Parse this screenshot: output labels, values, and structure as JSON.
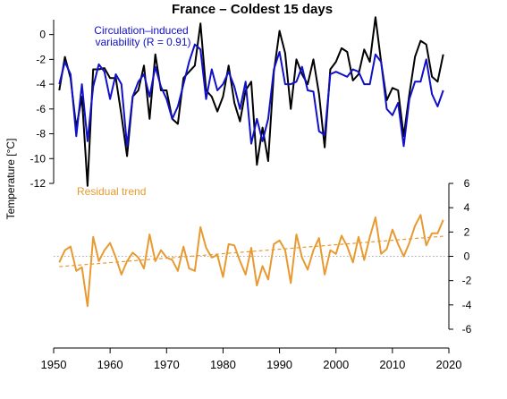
{
  "chart_data": {
    "type": "line",
    "title": "France – Coldest 15 days",
    "ylabel": "Temperature [°C]",
    "x_ticks": [
      1950,
      1960,
      1970,
      1980,
      1990,
      2000,
      2010,
      2020
    ],
    "top_panel": {
      "ylim": [
        -12,
        1.2
      ],
      "y_ticks": [
        0,
        -2,
        -4,
        -6,
        -8,
        -10,
        -12
      ],
      "annotation_line1": "Circulation–induced",
      "annotation_line2": "variability (R = 0.91)",
      "colors": {
        "observed": "#000000",
        "circulation": "#1010c8"
      },
      "x": [
        1951,
        1952,
        1953,
        1954,
        1955,
        1956,
        1957,
        1958,
        1959,
        1960,
        1961,
        1962,
        1963,
        1964,
        1965,
        1966,
        1967,
        1968,
        1969,
        1970,
        1971,
        1972,
        1973,
        1974,
        1975,
        1976,
        1977,
        1978,
        1979,
        1980,
        1981,
        1982,
        1983,
        1984,
        1985,
        1986,
        1987,
        1988,
        1989,
        1990,
        1991,
        1992,
        1993,
        1994,
        1995,
        1996,
        1997,
        1998,
        1999,
        2000,
        2001,
        2002,
        2003,
        2004,
        2005,
        2006,
        2007,
        2008,
        2009,
        2010,
        2011,
        2012,
        2013,
        2014,
        2015,
        2016,
        2017,
        2018,
        2019
      ],
      "series": [
        {
          "values": [
            -4.5,
            -1.8,
            -3.5,
            -7.5,
            -5.0,
            -12.2,
            -2.8,
            -2.8,
            -2.7,
            -3.5,
            -3.5,
            -6.5,
            -9.8,
            -5.0,
            -4.5,
            -2.5,
            -6.8,
            -1.6,
            -4.5,
            -4.5,
            -6.8,
            -7.2,
            -3.5,
            -3.0,
            -2.5,
            0.9,
            -4.5,
            -5.0,
            -6.2,
            -5.0,
            -2.5,
            -5.5,
            -7.0,
            -4.5,
            -3.8,
            -10.5,
            -7.5,
            -10.2,
            -3.0,
            0.3,
            -1.5,
            -6.0,
            -2.0,
            -3.2,
            -4.0,
            -2.0,
            -4.8,
            -9.1,
            -2.8,
            -2.2,
            -1.1,
            -1.4,
            -3.7,
            -3.2,
            -1.2,
            -2.2,
            1.4,
            -2.2,
            -5.3,
            -4.3,
            -4.5,
            -8.2,
            -4.8,
            -1.8,
            -0.5,
            -0.8,
            -3.4,
            -3.8,
            -1.6
          ]
        },
        {
          "values": [
            -4.0,
            -2.2,
            -3.2,
            -8.2,
            -4.0,
            -8.6,
            -4.2,
            -2.4,
            -3.0,
            -5.2,
            -3.2,
            -4.0,
            -9.0,
            -5.0,
            -3.8,
            -3.2,
            -5.0,
            -2.6,
            -4.2,
            -5.2,
            -6.8,
            -5.8,
            -4.0,
            -2.2,
            -0.8,
            -1.2,
            -5.2,
            -2.8,
            -4.5,
            -4.0,
            -3.0,
            -4.2,
            -6.0,
            -3.8,
            -8.8,
            -6.8,
            -8.6,
            -6.8,
            -2.8,
            -1.4,
            -4.0,
            -4.0,
            -3.8,
            -2.6,
            -4.5,
            -4.6,
            -7.8,
            -8.1,
            -3.2,
            -3.0,
            -3.2,
            -3.4,
            -2.8,
            -3.0,
            -4.0,
            -4.0,
            -1.6,
            -2.2,
            -6.0,
            -6.5,
            -5.5,
            -9.0,
            -5.2,
            -3.8,
            -3.8,
            -2.0,
            -4.8,
            -5.8,
            -4.5
          ]
        }
      ]
    },
    "bottom_panel": {
      "series_name": "Residual trend",
      "ylim": [
        -6,
        6
      ],
      "y_ticks": [
        6,
        4,
        2,
        0,
        -2,
        -4,
        -6
      ],
      "color": "#e89a30",
      "trend_line": {
        "x": [
          1951,
          2019
        ],
        "y": [
          -0.85,
          1.65
        ]
      },
      "zero_line": 0,
      "x": [
        1951,
        1952,
        1953,
        1954,
        1955,
        1956,
        1957,
        1958,
        1959,
        1960,
        1961,
        1962,
        1963,
        1964,
        1965,
        1966,
        1967,
        1968,
        1969,
        1970,
        1971,
        1972,
        1973,
        1974,
        1975,
        1976,
        1977,
        1978,
        1979,
        1980,
        1981,
        1982,
        1983,
        1984,
        1985,
        1986,
        1987,
        1988,
        1989,
        1990,
        1991,
        1992,
        1993,
        1994,
        1995,
        1996,
        1997,
        1998,
        1999,
        2000,
        2001,
        2002,
        2003,
        2004,
        2005,
        2006,
        2007,
        2008,
        2009,
        2010,
        2011,
        2012,
        2013,
        2014,
        2015,
        2016,
        2017,
        2018,
        2019
      ],
      "values": [
        -0.5,
        0.5,
        0.8,
        -1.2,
        -0.9,
        -4.1,
        1.6,
        -0.4,
        0.5,
        1.1,
        -0.1,
        -1.5,
        -0.4,
        0.3,
        -0.1,
        -1.0,
        1.8,
        -0.4,
        0.5,
        -0.1,
        -0.3,
        -1.2,
        0.8,
        -1.0,
        -1.2,
        2.4,
        0.7,
        -0.1,
        0.1,
        -1.7,
        1.0,
        0.9,
        -0.4,
        -1.5,
        0.7,
        -2.4,
        -0.8,
        -1.9,
        1.0,
        1.3,
        0.5,
        -2.2,
        1.8,
        -0.1,
        -1.1,
        0.5,
        1.5,
        -1.5,
        0.5,
        0.2,
        1.7,
        0.8,
        -0.5,
        1.6,
        -0.3,
        1.6,
        3.2,
        0.2,
        0.6,
        2.2,
        1.0,
        0.0,
        1.1,
        2.5,
        3.4,
        0.9,
        1.9,
        1.9,
        3.0
      ]
    }
  }
}
